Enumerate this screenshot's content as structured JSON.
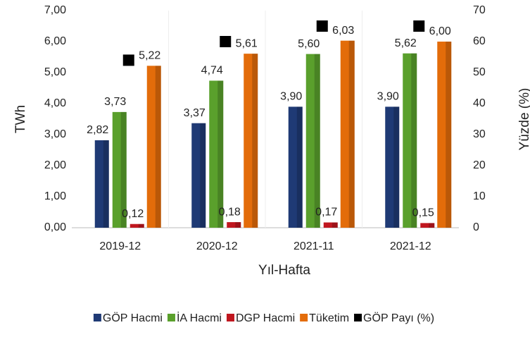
{
  "chart_data": {
    "type": "bar",
    "categories": [
      "2019-12",
      "2020-12",
      "2021-11",
      "2021-12"
    ],
    "x_label": "Yıl-Hafta",
    "y_label": "TWh",
    "y2_label": "Yüzde (%)",
    "ylim": [
      0,
      7
    ],
    "yticks": [
      {
        "value": 0,
        "label": "0,00"
      },
      {
        "value": 1,
        "label": "1,00"
      },
      {
        "value": 2,
        "label": "2,00"
      },
      {
        "value": 3,
        "label": "3,00"
      },
      {
        "value": 4,
        "label": "4,00"
      },
      {
        "value": 5,
        "label": "5,00"
      },
      {
        "value": 6,
        "label": "6,00"
      },
      {
        "value": 7,
        "label": "7,00"
      }
    ],
    "y2lim": [
      0,
      70
    ],
    "y2ticks": [
      0,
      10,
      20,
      30,
      40,
      50,
      60,
      70
    ],
    "grid": false,
    "legend": "bottom",
    "series": [
      {
        "name": "GÖP Hacmi",
        "color": "#1f3a75",
        "values": [
          2.82,
          3.37,
          3.9,
          3.9
        ],
        "value_labels": [
          "2,82",
          "3,37",
          "3,90",
          "3,90"
        ]
      },
      {
        "name": "İA Hacmi",
        "color": "#5aa02c",
        "values": [
          3.73,
          4.74,
          5.6,
          5.62
        ],
        "value_labels": [
          "3,73",
          "4,74",
          "5,60",
          "5,62"
        ]
      },
      {
        "name": "DGP Hacmi",
        "color": "#c0171f",
        "values": [
          0.12,
          0.18,
          0.17,
          0.15
        ],
        "value_labels": [
          "0,12",
          "0,18",
          "0,17",
          "0,15"
        ]
      },
      {
        "name": "Tüketim",
        "color": "#e36c0a",
        "values": [
          5.22,
          5.61,
          6.03,
          6.0
        ],
        "value_labels": [
          "5,22",
          "5,61",
          "6,03",
          "6,00"
        ]
      },
      {
        "name": "GÖP Payı (%)",
        "color": "#000000",
        "type": "scatter",
        "axis": "y2",
        "values": [
          54,
          60,
          65,
          65
        ]
      }
    ]
  }
}
